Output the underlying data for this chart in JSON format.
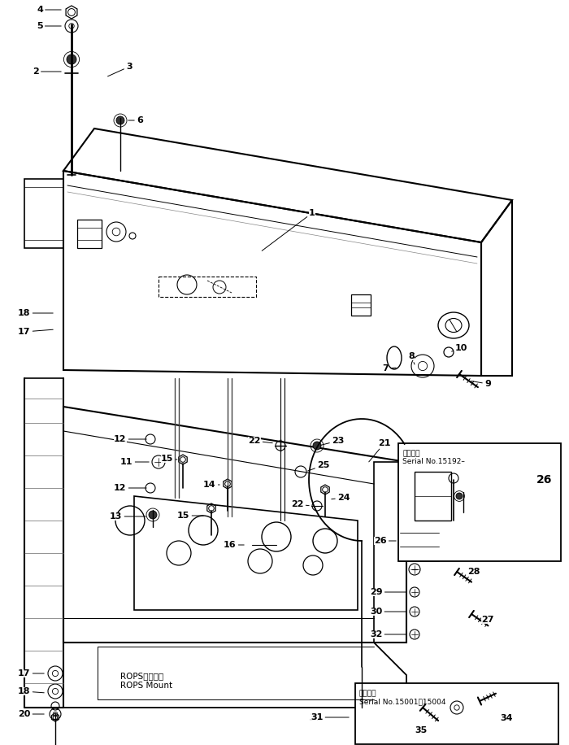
{
  "bg_color": "#ffffff",
  "line_color": "#000000",
  "label_fontsize": 8,
  "inset1_label": "適用号機\nSerial No.15192–",
  "inset2_label": "適用号機\nSerial No.15001【15004",
  "rops_label_jp": "ROPS マウント",
  "rops_label_en": "ROPS Mount"
}
